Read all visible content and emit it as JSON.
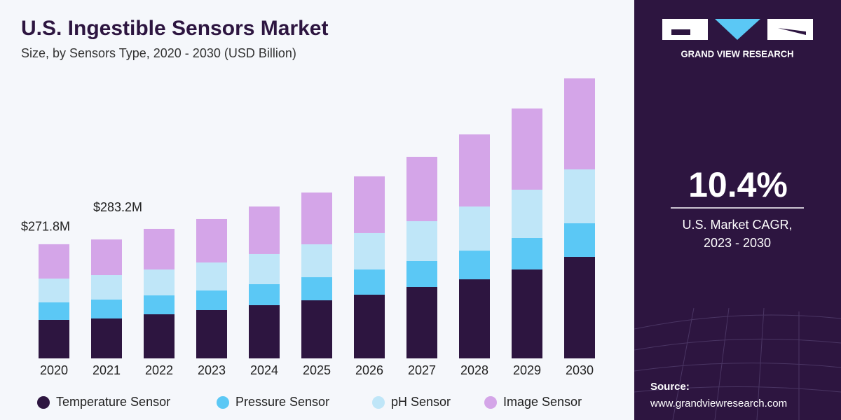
{
  "chart_data": {
    "type": "stacked_bar",
    "title": "U.S. Ingestible Sensors Market",
    "subtitle": "Size, by Sensors Type, 2020 - 2030 (USD Billion)",
    "categories": [
      "2020",
      "2021",
      "2022",
      "2023",
      "2024",
      "2025",
      "2026",
      "2027",
      "2028",
      "2029",
      "2030"
    ],
    "series": [
      {
        "name": "Temperature Sensor",
        "color": "#2d1540",
        "values": [
          91.7,
          95.0,
          105.0,
          115.0,
          126.7,
          138.3,
          151.7,
          170.0,
          188.3,
          211.7,
          241.7
        ]
      },
      {
        "name": "Pressure Sensor",
        "color": "#5bc8f5",
        "values": [
          41.7,
          45.0,
          45.0,
          46.7,
          50.0,
          55.0,
          60.0,
          61.7,
          68.3,
          75.0,
          80.0
        ]
      },
      {
        "name": "pH Sensor",
        "color": "#bfe6f8",
        "values": [
          56.7,
          58.3,
          61.7,
          66.7,
          71.7,
          78.3,
          86.7,
          95.0,
          105.0,
          115.0,
          128.3
        ]
      },
      {
        "name": "Image Sensor",
        "color": "#d4a5e8",
        "values": [
          81.7,
          84.9,
          96.7,
          103.3,
          113.3,
          123.3,
          135.0,
          153.3,
          171.7,
          193.3,
          216.7
        ]
      }
    ],
    "annotations": [
      {
        "category": "2020",
        "value": 271.8,
        "label": "$271.8M"
      },
      {
        "category": "2021",
        "value": 283.2,
        "label": "$283.2M"
      }
    ],
    "ylim": [
      0,
      680
    ],
    "legend": "bottom"
  },
  "side_panel": {
    "brand": "GRAND VIEW RESEARCH",
    "cagr": "10.4%",
    "cagr_label_1": "U.S. Market CAGR,",
    "cagr_label_2": "2023 - 2030",
    "source_label": "Source:",
    "source_url": "www.grandviewresearch.com"
  }
}
